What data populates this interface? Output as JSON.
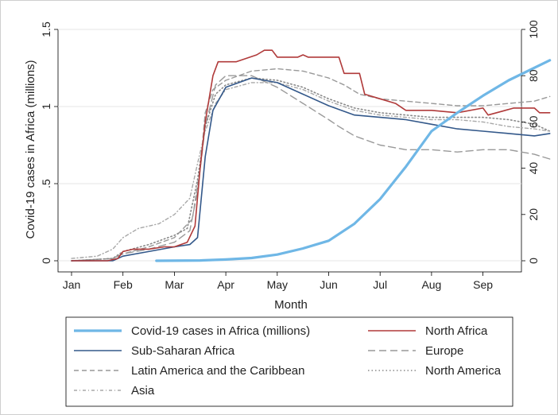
{
  "chart_data": {
    "type": "line",
    "xlabel": "Month",
    "ylabel_left": "Covid-19 cases in Africa (millions)",
    "ylabel_right": "",
    "x_ticks": [
      "Jan",
      "Feb",
      "Mar",
      "Apr",
      "May",
      "Jun",
      "Jul",
      "Aug",
      "Sep"
    ],
    "y_left_ticks": [
      "0",
      ".5",
      "1",
      "1.5"
    ],
    "y_left_lim": [
      0,
      1.5
    ],
    "y_right_ticks": [
      "0",
      "20",
      "40",
      "60",
      "80",
      "100"
    ],
    "y_right_lim": [
      0,
      100
    ],
    "grid": true,
    "legend_position": "bottom",
    "series": [
      {
        "name": "Covid-19 cases in Africa (millions)",
        "axis": "left",
        "color": "#6fb7e6",
        "style": "solid-thick",
        "points": [
          [
            1.65,
            0
          ],
          [
            2.5,
            0.002
          ],
          [
            3,
            0.008
          ],
          [
            3.5,
            0.018
          ],
          [
            4,
            0.04
          ],
          [
            4.5,
            0.08
          ],
          [
            5,
            0.13
          ],
          [
            5.5,
            0.24
          ],
          [
            6,
            0.4
          ],
          [
            6.5,
            0.61
          ],
          [
            7,
            0.84
          ],
          [
            7.5,
            0.96
          ],
          [
            8,
            1.07
          ],
          [
            8.5,
            1.17
          ],
          [
            9.3,
            1.3
          ]
        ]
      },
      {
        "name": "North Africa",
        "axis": "right",
        "color": "#b03a3a",
        "style": "solid",
        "points": [
          [
            0,
            0
          ],
          [
            0.7,
            0
          ],
          [
            0.9,
            1
          ],
          [
            1,
            4
          ],
          [
            1.2,
            5
          ],
          [
            1.5,
            5
          ],
          [
            1.8,
            6
          ],
          [
            2,
            6
          ],
          [
            2.25,
            8
          ],
          [
            2.4,
            15
          ],
          [
            2.5,
            40
          ],
          [
            2.6,
            60
          ],
          [
            2.75,
            80
          ],
          [
            2.85,
            86
          ],
          [
            3.2,
            86
          ],
          [
            3.6,
            89
          ],
          [
            3.75,
            91
          ],
          [
            3.9,
            91
          ],
          [
            4,
            88
          ],
          [
            4.4,
            88
          ],
          [
            4.5,
            89
          ],
          [
            4.6,
            88
          ],
          [
            5.2,
            88
          ],
          [
            5.3,
            81
          ],
          [
            5.6,
            81
          ],
          [
            5.7,
            72
          ],
          [
            6,
            70
          ],
          [
            6.3,
            68
          ],
          [
            6.5,
            65
          ],
          [
            7,
            65
          ],
          [
            7.5,
            64
          ],
          [
            8,
            66
          ],
          [
            8.1,
            63
          ],
          [
            8.6,
            66
          ],
          [
            9,
            66
          ],
          [
            9.1,
            64
          ],
          [
            9.3,
            64
          ]
        ]
      },
      {
        "name": "Sub-Saharan Africa",
        "axis": "right",
        "color": "#33588a",
        "style": "solid",
        "points": [
          [
            0,
            0
          ],
          [
            0.8,
            0
          ],
          [
            1,
            2
          ],
          [
            1.5,
            4
          ],
          [
            2,
            6
          ],
          [
            2.3,
            7
          ],
          [
            2.45,
            10
          ],
          [
            2.6,
            45
          ],
          [
            2.75,
            65
          ],
          [
            3,
            75
          ],
          [
            3.5,
            79
          ],
          [
            4,
            77
          ],
          [
            4.5,
            72
          ],
          [
            5,
            67
          ],
          [
            5.5,
            63
          ],
          [
            6,
            62
          ],
          [
            6.5,
            61
          ],
          [
            7,
            59
          ],
          [
            7.5,
            57
          ],
          [
            8,
            56
          ],
          [
            8.5,
            55
          ],
          [
            9,
            54
          ],
          [
            9.3,
            55
          ]
        ]
      },
      {
        "name": "Europe",
        "axis": "right",
        "color": "#999999",
        "style": "longdash",
        "points": [
          [
            0,
            0
          ],
          [
            0.8,
            1
          ],
          [
            1,
            3
          ],
          [
            1.5,
            5
          ],
          [
            2,
            8
          ],
          [
            2.3,
            13
          ],
          [
            2.45,
            30
          ],
          [
            2.6,
            58
          ],
          [
            2.8,
            76
          ],
          [
            3,
            80
          ],
          [
            3.5,
            80
          ],
          [
            4,
            75
          ],
          [
            4.5,
            68
          ],
          [
            5,
            61
          ],
          [
            5.2,
            58
          ],
          [
            5.5,
            54
          ],
          [
            6,
            50
          ],
          [
            6.5,
            48
          ],
          [
            7,
            48
          ],
          [
            7.5,
            47
          ],
          [
            8,
            48
          ],
          [
            8.5,
            48
          ],
          [
            9,
            46
          ],
          [
            9.3,
            44
          ]
        ]
      },
      {
        "name": "Latin America and the Caribbean",
        "axis": "right",
        "color": "#999999",
        "style": "dash",
        "points": [
          [
            0,
            0
          ],
          [
            0.8,
            1
          ],
          [
            1,
            3
          ],
          [
            1.5,
            6
          ],
          [
            2,
            10
          ],
          [
            2.35,
            18
          ],
          [
            2.5,
            40
          ],
          [
            2.6,
            64
          ],
          [
            2.75,
            74
          ],
          [
            3,
            78
          ],
          [
            3.5,
            82
          ],
          [
            4,
            83
          ],
          [
            4.5,
            82
          ],
          [
            5,
            79
          ],
          [
            5.3,
            76
          ],
          [
            5.6,
            72
          ],
          [
            6,
            70
          ],
          [
            6.5,
            69
          ],
          [
            7,
            68
          ],
          [
            7.5,
            67
          ],
          [
            8,
            67
          ],
          [
            8.5,
            68
          ],
          [
            9,
            69
          ],
          [
            9.3,
            71
          ]
        ]
      },
      {
        "name": "North America",
        "axis": "right",
        "color": "#8a8a8a",
        "style": "dot",
        "points": [
          [
            0,
            0
          ],
          [
            0.8,
            1
          ],
          [
            1,
            4
          ],
          [
            1.5,
            7
          ],
          [
            2,
            11
          ],
          [
            2.25,
            14
          ],
          [
            2.45,
            35
          ],
          [
            2.6,
            58
          ],
          [
            2.8,
            72
          ],
          [
            3,
            76
          ],
          [
            3.5,
            79
          ],
          [
            4,
            78
          ],
          [
            4.5,
            75
          ],
          [
            5,
            70
          ],
          [
            5.5,
            66
          ],
          [
            6,
            64
          ],
          [
            6.5,
            63
          ],
          [
            7,
            62
          ],
          [
            7.5,
            62
          ],
          [
            8,
            62
          ],
          [
            8.5,
            61
          ],
          [
            9,
            59
          ],
          [
            9.3,
            56
          ]
        ]
      },
      {
        "name": "Asia",
        "axis": "right",
        "color": "#a8a8a8",
        "style": "dashdot",
        "points": [
          [
            0,
            1
          ],
          [
            0.5,
            2
          ],
          [
            0.8,
            5
          ],
          [
            1,
            10
          ],
          [
            1.3,
            14
          ],
          [
            1.7,
            16
          ],
          [
            2,
            20
          ],
          [
            2.3,
            27
          ],
          [
            2.45,
            42
          ],
          [
            2.6,
            56
          ],
          [
            2.8,
            68
          ],
          [
            3,
            74
          ],
          [
            3.5,
            77
          ],
          [
            4,
            77
          ],
          [
            4.5,
            74
          ],
          [
            5,
            69
          ],
          [
            5.5,
            65
          ],
          [
            6,
            63
          ],
          [
            6.5,
            62
          ],
          [
            7,
            61
          ],
          [
            7.5,
            61
          ],
          [
            8,
            60
          ],
          [
            8.5,
            58
          ],
          [
            9,
            57
          ],
          [
            9.3,
            56
          ]
        ]
      }
    ]
  }
}
